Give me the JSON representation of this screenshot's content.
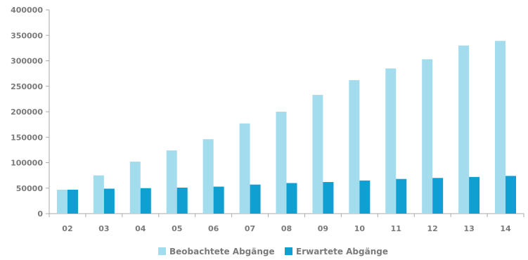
{
  "chart_data": {
    "type": "bar",
    "categories": [
      "02",
      "03",
      "04",
      "05",
      "06",
      "07",
      "08",
      "09",
      "10",
      "11",
      "12",
      "13",
      "14"
    ],
    "series": [
      {
        "name": "Beobachtete Abgänge",
        "color": "#a3dced",
        "values": [
          47000,
          75000,
          102000,
          124000,
          146000,
          177000,
          200000,
          233000,
          262000,
          285000,
          303000,
          330000,
          339000
        ]
      },
      {
        "name": "Erwartete Abgänge",
        "color": "#0f9fd0",
        "values": [
          47000,
          49000,
          50000,
          51000,
          53000,
          57000,
          60000,
          62000,
          65000,
          68000,
          70000,
          72000,
          74000
        ]
      }
    ],
    "yticks": [
      "0",
      "50000",
      "100000",
      "150000",
      "200000",
      "250000",
      "300000",
      "350000",
      "400000"
    ],
    "ylim": [
      0,
      400000
    ],
    "grid": false,
    "legend_position": "bottom-center",
    "axis_color": "#a9a9a9",
    "text_color": "#7a7a7a"
  }
}
